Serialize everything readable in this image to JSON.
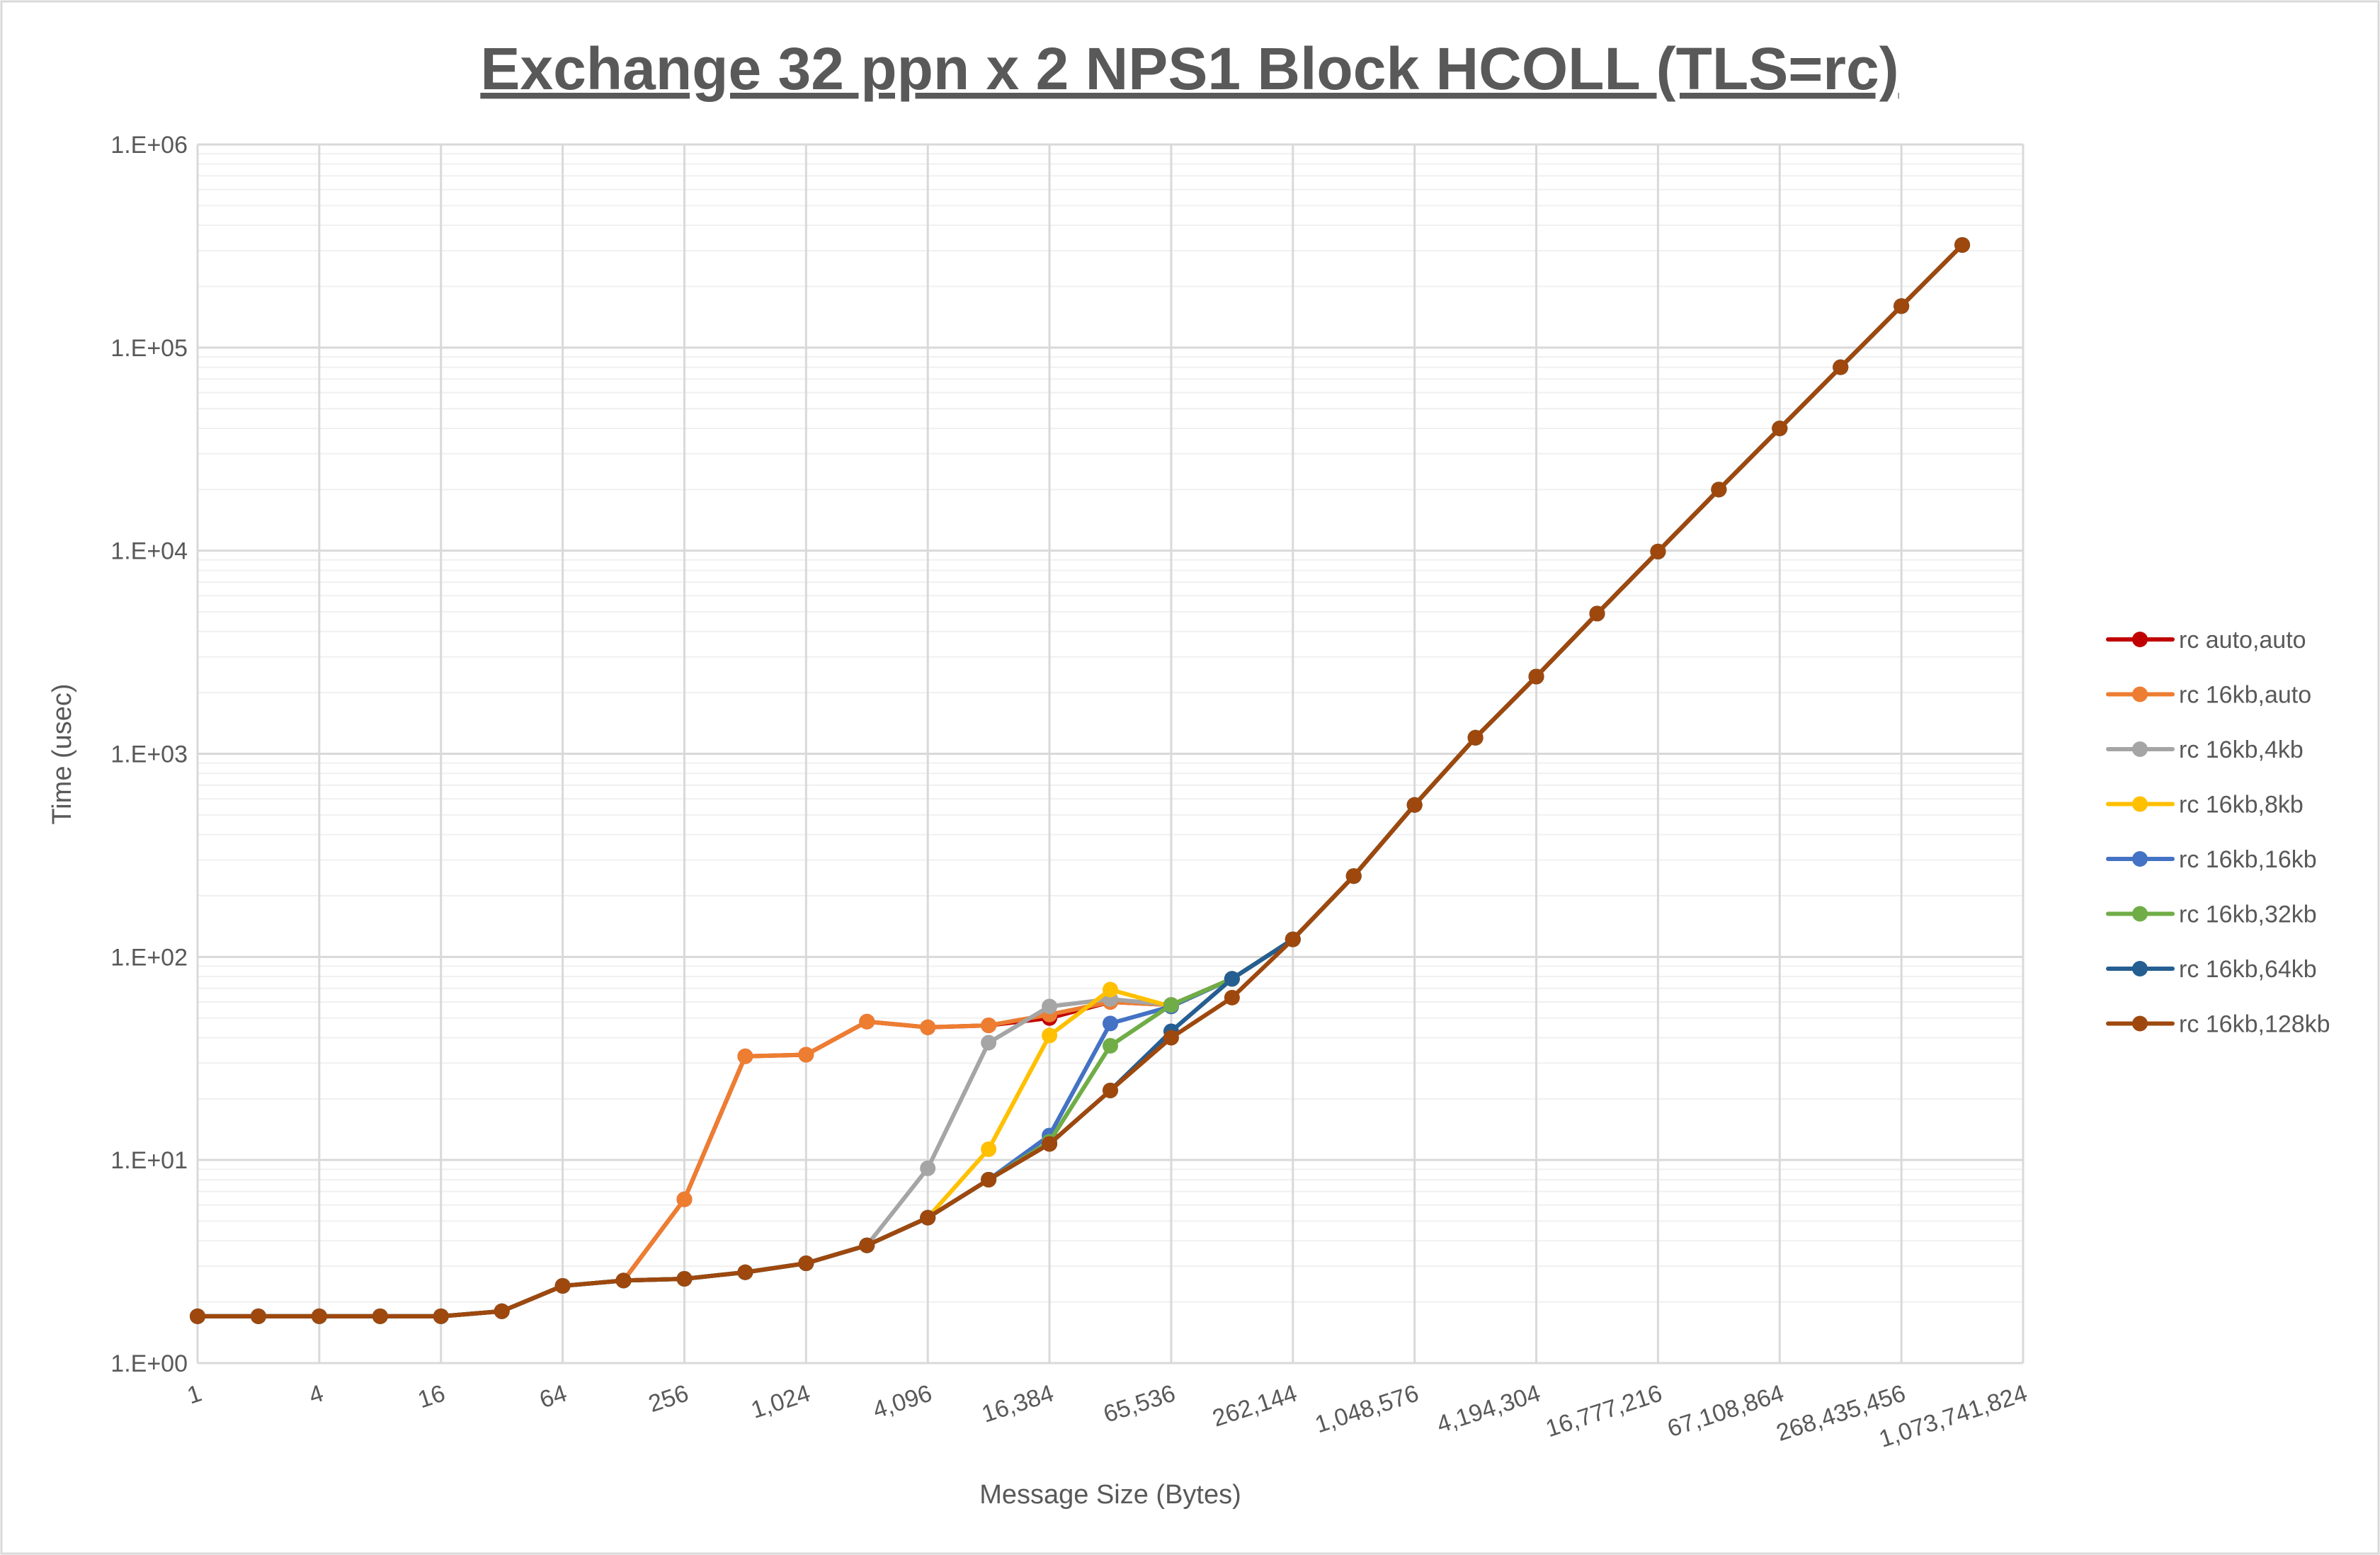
{
  "chart_data": {
    "type": "line",
    "title": "Exchange 32 ppn x 2 NPS1 Block HCOLL (TLS=rc)",
    "xlabel": "Message Size (Bytes)",
    "ylabel": "Time (usec)",
    "xscale": "log2",
    "yscale": "log10",
    "xlim": [
      1,
      1073741824
    ],
    "ylim": [
      1,
      1000000
    ],
    "grid": true,
    "legend_position": "right",
    "x_tick_labels": [
      "1",
      "4",
      "16",
      "64",
      "256",
      "1,024",
      "4,096",
      "16,384",
      "65,536",
      "262,144",
      "1,048,576",
      "4,194,304",
      "16,777,216",
      "67,108,864",
      "268,435,456",
      "1,073,741,824"
    ],
    "y_tick_labels": [
      "1.E+00",
      "1.E+01",
      "1.E+02",
      "1.E+03",
      "1.E+04",
      "1.E+05",
      "1.E+06"
    ],
    "x": [
      1,
      2,
      4,
      8,
      16,
      32,
      64,
      128,
      256,
      512,
      1024,
      2048,
      4096,
      8192,
      16384,
      32768,
      65536,
      131072,
      262144,
      524288,
      1048576,
      2097152,
      4194304,
      8388608,
      16777216,
      33554432,
      67108864,
      134217728,
      268435456,
      536870912
    ],
    "series": [
      {
        "name": "rc auto,auto",
        "color": "#C00000",
        "values": [
          1.7,
          1.7,
          1.7,
          1.7,
          1.7,
          1.8,
          2.4,
          2.55,
          6.4,
          32.4,
          33,
          48,
          45,
          46,
          50,
          60,
          58,
          78,
          122,
          250,
          560,
          1200,
          2400,
          4900,
          9900,
          20000,
          40000,
          80000,
          160000,
          320000
        ]
      },
      {
        "name": "rc 16kb,auto",
        "color": "#ED7D31",
        "values": [
          1.7,
          1.7,
          1.7,
          1.7,
          1.7,
          1.8,
          2.4,
          2.55,
          6.4,
          32.4,
          33,
          48,
          45,
          46,
          52,
          60,
          58,
          78,
          122,
          250,
          560,
          1200,
          2400,
          4900,
          9900,
          20000,
          40000,
          80000,
          160000,
          320000
        ]
      },
      {
        "name": "rc 16kb,4kb",
        "color": "#A5A5A5",
        "values": [
          1.7,
          1.7,
          1.7,
          1.7,
          1.7,
          1.8,
          2.4,
          2.55,
          2.6,
          2.8,
          3.1,
          3.8,
          9.1,
          37.8,
          57,
          62,
          58,
          78,
          122,
          250,
          560,
          1200,
          2400,
          4900,
          9900,
          20000,
          40000,
          80000,
          160000,
          320000
        ]
      },
      {
        "name": "rc 16kb,8kb",
        "color": "#FFC000",
        "values": [
          1.7,
          1.7,
          1.7,
          1.7,
          1.7,
          1.8,
          2.4,
          2.55,
          2.6,
          2.8,
          3.1,
          3.8,
          5.2,
          11.3,
          41,
          69,
          57,
          78,
          122,
          250,
          560,
          1200,
          2400,
          4900,
          9900,
          20000,
          40000,
          80000,
          160000,
          320000
        ]
      },
      {
        "name": "rc 16kb,16kb",
        "color": "#4472C4",
        "values": [
          1.7,
          1.7,
          1.7,
          1.7,
          1.7,
          1.8,
          2.4,
          2.55,
          2.6,
          2.8,
          3.1,
          3.8,
          5.2,
          8.0,
          13.2,
          47,
          57,
          78,
          122,
          250,
          560,
          1200,
          2400,
          4900,
          9900,
          20000,
          40000,
          80000,
          160000,
          320000
        ]
      },
      {
        "name": "rc 16kb,32kb",
        "color": "#70AD47",
        "values": [
          1.7,
          1.7,
          1.7,
          1.7,
          1.7,
          1.8,
          2.4,
          2.55,
          2.6,
          2.8,
          3.1,
          3.8,
          5.2,
          8.0,
          12.3,
          36.5,
          58,
          78,
          122,
          250,
          560,
          1200,
          2400,
          4900,
          9900,
          20000,
          40000,
          80000,
          160000,
          320000
        ]
      },
      {
        "name": "rc 16kb,64kb",
        "color": "#255E91",
        "values": [
          1.7,
          1.7,
          1.7,
          1.7,
          1.7,
          1.8,
          2.4,
          2.55,
          2.6,
          2.8,
          3.1,
          3.8,
          5.2,
          8.0,
          12,
          22,
          43,
          78,
          122,
          250,
          560,
          1200,
          2400,
          4900,
          9900,
          20000,
          40000,
          80000,
          160000,
          320000
        ]
      },
      {
        "name": "rc 16kb,128kb",
        "color": "#9E480E",
        "values": [
          1.7,
          1.7,
          1.7,
          1.7,
          1.7,
          1.8,
          2.4,
          2.55,
          2.6,
          2.8,
          3.1,
          3.8,
          5.2,
          8.0,
          12,
          22,
          40,
          63,
          122,
          250,
          560,
          1200,
          2400,
          4900,
          9900,
          20000,
          40000,
          80000,
          160000,
          320000
        ]
      }
    ]
  }
}
